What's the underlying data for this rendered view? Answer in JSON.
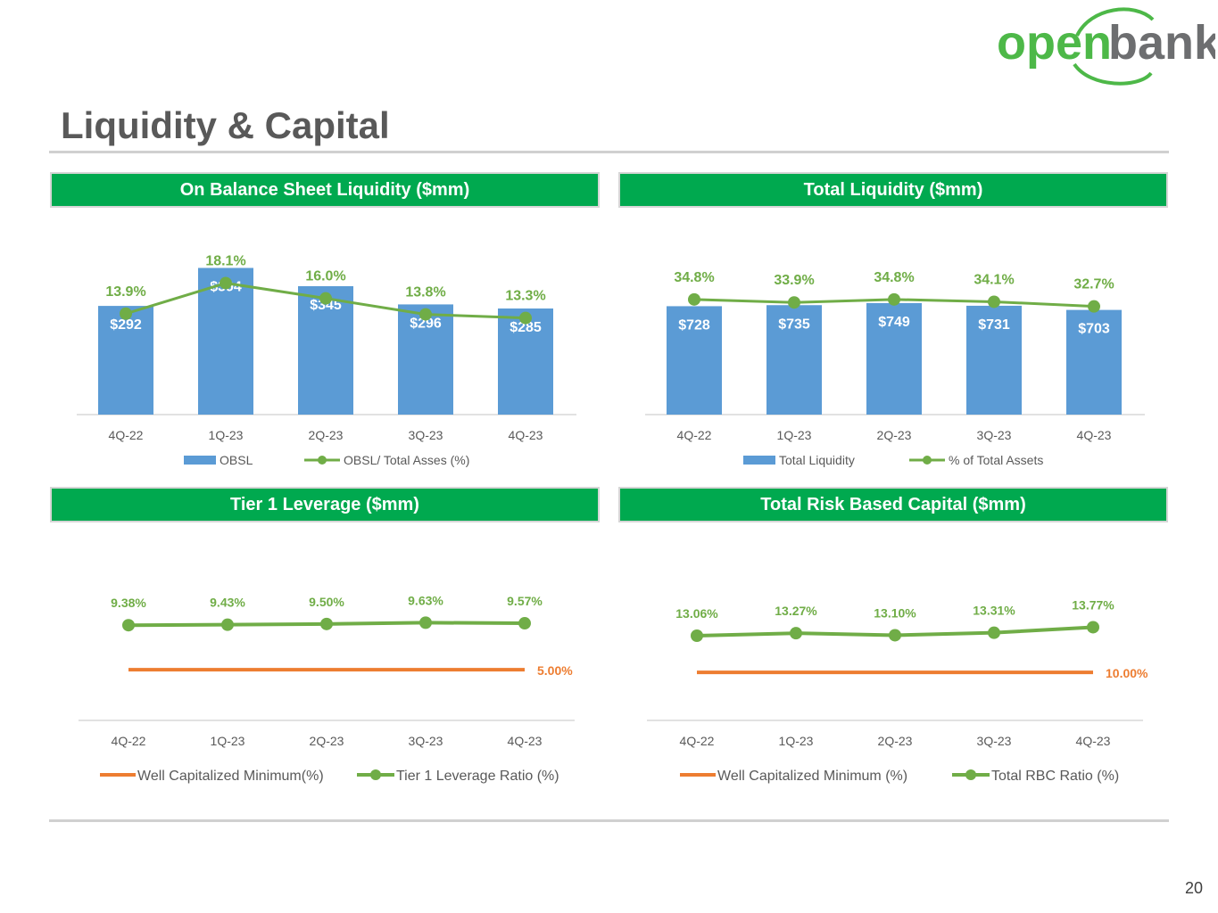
{
  "brand": {
    "logo_word1": "open",
    "logo_word2": "bank",
    "green": "#4db848",
    "gray": "#6d6e70"
  },
  "page": {
    "title": "Liquidity & Capital",
    "number": "20"
  },
  "colors": {
    "header_green": "#00a94f",
    "bar_blue": "#5b9bd5",
    "line_green": "#70ad47",
    "label_green": "#70ad47",
    "orange": "#ed7d31",
    "axis_text": "#595959"
  },
  "panels": [
    {
      "header": "On Balance Sheet Liquidity ($mm)"
    },
    {
      "header": "Total Liquidity ($mm)"
    },
    {
      "header": "Tier 1 Leverage ($mm)"
    },
    {
      "header": "Total Risk Based Capital ($mm)"
    }
  ],
  "chart_data": [
    {
      "type": "bar",
      "title": "On Balance Sheet Liquidity ($mm)",
      "categories": [
        "4Q-22",
        "1Q-23",
        "2Q-23",
        "3Q-23",
        "4Q-23"
      ],
      "series": [
        {
          "name": "OBSL",
          "kind": "bar",
          "values": [
            292,
            394,
            345,
            296,
            285
          ],
          "labels": [
            "$292",
            "$394",
            "$345",
            "$296",
            "$285"
          ]
        },
        {
          "name": "OBSL/ Total Asses (%)",
          "kind": "line",
          "values": [
            13.9,
            18.1,
            16.0,
            13.8,
            13.3
          ],
          "labels": [
            "13.9%",
            "18.1%",
            "16.0%",
            "13.8%",
            "13.3%"
          ]
        }
      ],
      "bar_ylim": [
        0,
        400
      ],
      "line_ylim": [
        0,
        20.5
      ]
    },
    {
      "type": "bar",
      "title": "Total Liquidity ($mm)",
      "categories": [
        "4Q-22",
        "1Q-23",
        "2Q-23",
        "3Q-23",
        "4Q-23"
      ],
      "series": [
        {
          "name": "Total Liquidity",
          "kind": "bar",
          "values": [
            728,
            735,
            749,
            731,
            703
          ],
          "labels": [
            "$728",
            "$735",
            "$749",
            "$731",
            "$703"
          ]
        },
        {
          "name": "% of Total Assets",
          "kind": "line",
          "values": [
            34.8,
            33.9,
            34.8,
            34.1,
            32.7
          ],
          "labels": [
            "34.8%",
            "33.9%",
            "34.8%",
            "34.1%",
            "32.7%"
          ]
        }
      ],
      "bar_ylim": [
        0,
        1000
      ],
      "line_ylim": [
        0,
        45
      ]
    },
    {
      "type": "line",
      "title": "Tier 1 Leverage ($mm)",
      "categories": [
        "4Q-22",
        "1Q-23",
        "2Q-23",
        "3Q-23",
        "4Q-23"
      ],
      "series": [
        {
          "name": "Well Capitalized Minimum(%)",
          "kind": "line-plain",
          "values": [
            5.0,
            5.0,
            5.0,
            5.0,
            5.0
          ],
          "labels": [
            "",
            "",
            "",
            "",
            "5.00%"
          ]
        },
        {
          "name": "Tier 1 Leverage Ratio (%)",
          "kind": "line",
          "values": [
            9.38,
            9.43,
            9.5,
            9.63,
            9.57
          ],
          "labels": [
            "9.38%",
            "9.43%",
            "9.50%",
            "9.63%",
            "9.57%"
          ]
        }
      ],
      "ylim": [
        0,
        13
      ]
    },
    {
      "type": "line",
      "title": "Total Risk Based Capital ($mm)",
      "categories": [
        "4Q-22",
        "1Q-23",
        "2Q-23",
        "3Q-23",
        "4Q-23"
      ],
      "series": [
        {
          "name": "Well Capitalized Minimum (%)",
          "kind": "line-plain",
          "values": [
            10.0,
            10.0,
            10.0,
            10.0,
            10.0
          ],
          "labels": [
            "",
            "",
            "",
            "",
            "10.00%"
          ]
        },
        {
          "name": "Total RBC Ratio (%)",
          "kind": "line",
          "values": [
            13.06,
            13.27,
            13.1,
            13.31,
            13.77
          ],
          "labels": [
            "13.06%",
            "13.27%",
            "13.10%",
            "13.31%",
            "13.77%"
          ]
        }
      ],
      "ylim": [
        6,
        17
      ]
    }
  ]
}
